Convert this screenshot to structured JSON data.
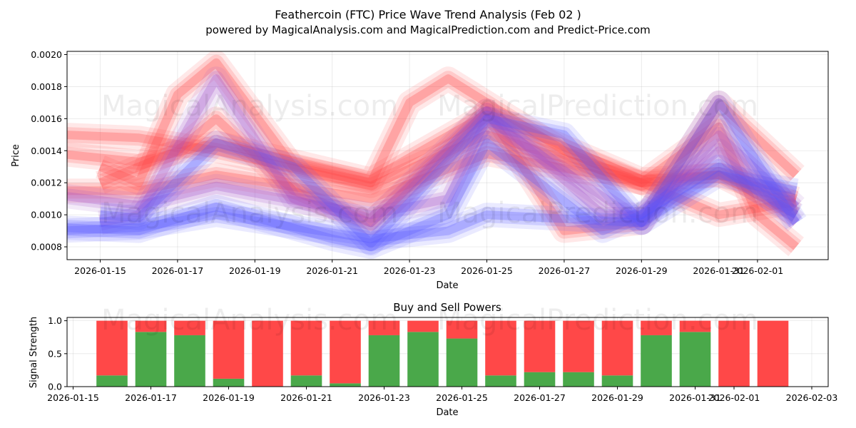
{
  "chart_data": [
    {
      "type": "area",
      "title": "Feathercoin (FTC) Price Wave Trend Analysis (Feb 02 )",
      "subtitle": "powered by MagicalAnalysis.com and MagicalPrediction.com and Predict-Price.com",
      "xlabel": "Date",
      "ylabel": "Price",
      "ylim": [
        0.00072,
        0.00202
      ],
      "yticks": [
        "0.0008",
        "0.0010",
        "0.0012",
        "0.0014",
        "0.0016",
        "0.0018",
        "0.0020"
      ],
      "xticks": [
        "2026-01-15",
        "2026-01-17",
        "2026-01-19",
        "2026-01-21",
        "2026-01-23",
        "2026-01-25",
        "2026-01-27",
        "2026-01-29",
        "2026-01-31",
        "2026-02-01"
      ],
      "watermarks": [
        "MagicalAnalysis.com",
        "MagicalPrediction.com"
      ],
      "colors": {
        "sell": "#ff4444",
        "buy": "#5555ff"
      },
      "series": [
        {
          "name": "red-band-1",
          "color": "red",
          "dates": [
            "2026-01-14",
            "2026-01-16",
            "2026-01-18",
            "2026-01-22",
            "2026-01-25",
            "2026-01-29",
            "2026-01-31",
            "2026-02-02"
          ],
          "values": [
            0.00138,
            0.00133,
            0.00145,
            0.00122,
            0.00163,
            0.00122,
            0.00125,
            0.001
          ]
        },
        {
          "name": "red-band-2",
          "color": "red",
          "dates": [
            "2026-01-14",
            "2026-01-16",
            "2026-01-18",
            "2026-01-22",
            "2026-01-25",
            "2026-01-29",
            "2026-01-31",
            "2026-02-02"
          ],
          "values": [
            0.0015,
            0.00148,
            0.0014,
            0.00118,
            0.0015,
            0.0012,
            0.00125,
            0.0011
          ]
        },
        {
          "name": "red-band-3",
          "color": "red",
          "dates": [
            "2026-01-14",
            "2026-01-16",
            "2026-01-18",
            "2026-01-22",
            "2026-01-25",
            "2026-01-29",
            "2026-01-31",
            "2026-02-02"
          ],
          "values": [
            0.00115,
            0.00115,
            0.00125,
            0.0011,
            0.00138,
            0.0012,
            0.001,
            0.00108
          ]
        },
        {
          "name": "red-spike-1",
          "color": "red",
          "dates": [
            "2026-01-15",
            "2026-01-16",
            "2026-01-17",
            "2026-01-18",
            "2026-01-20",
            "2026-01-22",
            "2026-01-23",
            "2026-01-24",
            "2026-01-25",
            "2026-01-27",
            "2026-01-29",
            "2026-01-31",
            "2026-02-01",
            "2026-02-02"
          ],
          "values": [
            0.0013,
            0.0012,
            0.00175,
            0.00195,
            0.0013,
            0.0012,
            0.0017,
            0.00185,
            0.0017,
            0.0014,
            0.0012,
            0.00155,
            0.001,
            0.0008
          ]
        },
        {
          "name": "red-spike-2",
          "color": "red",
          "dates": [
            "2026-01-15",
            "2026-01-17",
            "2026-01-18",
            "2026-01-20",
            "2026-01-22",
            "2026-01-24",
            "2026-01-25",
            "2026-01-27",
            "2026-01-29",
            "2026-01-31",
            "2026-02-02"
          ],
          "values": [
            0.0012,
            0.0014,
            0.0016,
            0.00115,
            0.00095,
            0.0014,
            0.00165,
            0.0009,
            0.00095,
            0.0017,
            0.00125
          ]
        },
        {
          "name": "purple-band",
          "color": "purple",
          "dates": [
            "2026-01-14",
            "2026-01-16",
            "2026-01-18",
            "2026-01-22",
            "2026-01-24",
            "2026-01-25",
            "2026-01-29",
            "2026-01-31",
            "2026-02-02"
          ],
          "values": [
            0.00112,
            0.00106,
            0.00118,
            0.001,
            0.0011,
            0.0016,
            0.00095,
            0.0015,
            0.00105
          ]
        },
        {
          "name": "purple-band-2",
          "color": "purple",
          "dates": [
            "2026-01-15",
            "2026-01-16",
            "2026-01-18",
            "2026-01-20",
            "2026-01-22",
            "2026-01-25",
            "2026-01-28",
            "2026-01-29",
            "2026-01-31",
            "2026-02-02"
          ],
          "values": [
            0.00095,
            0.001,
            0.00185,
            0.0011,
            0.00095,
            0.00165,
            0.001,
            0.001,
            0.0014,
            0.00095
          ]
        },
        {
          "name": "blue-band-1",
          "color": "blue",
          "dates": [
            "2026-01-14",
            "2026-01-16",
            "2026-01-18",
            "2026-01-22",
            "2026-01-24",
            "2026-01-25",
            "2026-01-29",
            "2026-01-31",
            "2026-02-02"
          ],
          "values": [
            0.0009,
            0.00092,
            0.001,
            0.00085,
            0.0009,
            0.001,
            0.00095,
            0.00125,
            0.00115
          ]
        },
        {
          "name": "blue-band-2",
          "color": "blue",
          "dates": [
            "2026-01-15",
            "2026-01-16",
            "2026-01-18",
            "2026-01-20",
            "2026-01-22",
            "2026-01-25",
            "2026-01-27",
            "2026-01-29",
            "2026-01-31",
            "2026-02-02"
          ],
          "values": [
            0.001,
            0.00098,
            0.00145,
            0.0013,
            0.00082,
            0.0016,
            0.0015,
            0.00095,
            0.0017,
            0.00095
          ]
        },
        {
          "name": "blue-band-3",
          "color": "blue",
          "dates": [
            "2026-01-14",
            "2026-01-16",
            "2026-01-18",
            "2026-01-21",
            "2026-01-22",
            "2026-01-24",
            "2026-01-25",
            "2026-01-28",
            "2026-01-29",
            "2026-01-31",
            "2026-02-02"
          ],
          "values": [
            0.00092,
            0.0009,
            0.00105,
            0.00085,
            0.0008,
            0.001,
            0.00145,
            0.0009,
            0.001,
            0.0013,
            0.001
          ]
        }
      ]
    },
    {
      "type": "bar",
      "title": "Buy and Sell Powers",
      "xlabel": "Date",
      "ylabel": "Signal Strength",
      "ylim": [
        0,
        1.05
      ],
      "yticks": [
        "0.0",
        "0.5",
        "1.0"
      ],
      "xticks": [
        "2026-01-15",
        "2026-01-17",
        "2026-01-19",
        "2026-01-21",
        "2026-01-23",
        "2026-01-25",
        "2026-01-27",
        "2026-01-29",
        "2026-01-31",
        "2026-02-01",
        "2026-02-03"
      ],
      "colors": {
        "buy": "#4aa84a",
        "sell": "#ff4848"
      },
      "categories": [
        "2026-01-16",
        "2026-01-17",
        "2026-01-18",
        "2026-01-19",
        "2026-01-20",
        "2026-01-21",
        "2026-01-22",
        "2026-01-23",
        "2026-01-24",
        "2026-01-25",
        "2026-01-26",
        "2026-01-27",
        "2026-01-28",
        "2026-01-29",
        "2026-01-30",
        "2026-01-31",
        "2026-02-01",
        "2026-02-02"
      ],
      "series": [
        {
          "name": "Buy",
          "values": [
            0.17,
            0.83,
            0.78,
            0.12,
            0.0,
            0.17,
            0.05,
            0.78,
            0.83,
            0.73,
            0.17,
            0.22,
            0.22,
            0.17,
            0.78,
            0.83,
            0.0,
            0.0
          ]
        },
        {
          "name": "Sell",
          "values": [
            0.83,
            0.17,
            0.22,
            0.88,
            1.0,
            0.83,
            0.95,
            0.22,
            0.17,
            0.27,
            0.83,
            0.78,
            0.78,
            0.83,
            0.22,
            0.17,
            1.0,
            1.0
          ]
        }
      ]
    }
  ]
}
